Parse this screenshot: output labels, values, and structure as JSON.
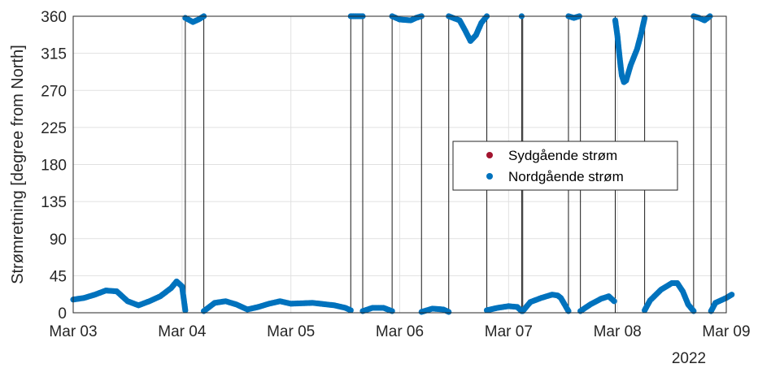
{
  "chart_data": {
    "type": "scatter",
    "title": "",
    "xlabel": "",
    "ylabel": "Strømretning [degree from North]",
    "x_ticks": [
      "Mar 03",
      "Mar 04",
      "Mar 05",
      "Mar 06",
      "Mar 07",
      "Mar 08",
      "Mar 09"
    ],
    "x_year_label": "2022",
    "x_range_days": [
      0,
      6
    ],
    "ylim": [
      0,
      360
    ],
    "y_ticks": [
      0,
      45,
      90,
      135,
      180,
      225,
      270,
      315,
      360
    ],
    "grid": true,
    "legend": {
      "placement": "center-right",
      "entries": [
        "Sydgående strøm",
        "Nordgående strøm"
      ]
    },
    "series": [
      {
        "name": "Sydgående strøm",
        "color": "#A2142F",
        "segments": []
      },
      {
        "name": "Nordgående strøm",
        "color": "#0072BD",
        "segments": [
          [
            [
              0.0,
              16
            ],
            [
              0.1,
              18
            ],
            [
              0.2,
              22
            ],
            [
              0.3,
              27
            ],
            [
              0.4,
              26
            ],
            [
              0.5,
              14
            ],
            [
              0.6,
              9
            ],
            [
              0.7,
              14
            ],
            [
              0.8,
              20
            ],
            [
              0.9,
              30
            ],
            [
              0.95,
              38
            ],
            [
              1.0,
              32
            ],
            [
              1.03,
              3
            ]
          ],
          [
            [
              1.03,
              358
            ],
            [
              1.1,
              353
            ],
            [
              1.15,
              356
            ],
            [
              1.2,
              360
            ]
          ],
          [
            [
              1.2,
              2
            ],
            [
              1.3,
              12
            ],
            [
              1.4,
              14
            ],
            [
              1.5,
              10
            ],
            [
              1.6,
              4
            ],
            [
              1.7,
              7
            ],
            [
              1.8,
              11
            ],
            [
              1.9,
              14
            ],
            [
              2.0,
              11
            ],
            [
              2.2,
              12
            ],
            [
              2.4,
              9
            ],
            [
              2.5,
              6
            ],
            [
              2.55,
              3
            ]
          ],
          [
            [
              2.55,
              360
            ],
            [
              2.6,
              360
            ],
            [
              2.66,
              360
            ]
          ],
          [
            [
              2.66,
              2
            ],
            [
              2.75,
              6
            ],
            [
              2.85,
              6
            ],
            [
              2.93,
              2
            ]
          ],
          [
            [
              2.93,
              360
            ],
            [
              3.0,
              356
            ],
            [
              3.1,
              355
            ],
            [
              3.15,
              358
            ],
            [
              3.2,
              360
            ]
          ],
          [
            [
              3.2,
              1
            ],
            [
              3.3,
              5
            ],
            [
              3.4,
              4
            ],
            [
              3.45,
              1
            ]
          ],
          [
            [
              3.45,
              360
            ],
            [
              3.55,
              355
            ],
            [
              3.6,
              343
            ],
            [
              3.65,
              330
            ],
            [
              3.7,
              337
            ],
            [
              3.75,
              352
            ],
            [
              3.8,
              360
            ]
          ],
          [
            [
              3.8,
              3
            ],
            [
              3.9,
              6
            ],
            [
              4.0,
              8
            ],
            [
              4.08,
              7
            ],
            [
              4.12,
              2
            ]
          ],
          [
            [
              4.12,
              360
            ]
          ],
          [
            [
              4.13,
              2
            ],
            [
              4.2,
              13
            ],
            [
              4.3,
              18
            ],
            [
              4.4,
              22
            ],
            [
              4.45,
              21
            ],
            [
              4.48,
              18
            ],
            [
              4.55,
              2
            ]
          ],
          [
            [
              4.55,
              360
            ],
            [
              4.6,
              358
            ],
            [
              4.65,
              360
            ]
          ],
          [
            [
              4.66,
              2
            ],
            [
              4.75,
              10
            ],
            [
              4.85,
              17
            ],
            [
              4.92,
              20
            ],
            [
              4.97,
              14
            ]
          ],
          [
            [
              4.98,
              355
            ],
            [
              5.0,
              336
            ],
            [
              5.02,
              310
            ],
            [
              5.04,
              288
            ],
            [
              5.06,
              280
            ],
            [
              5.08,
              282
            ],
            [
              5.12,
              300
            ],
            [
              5.18,
              320
            ],
            [
              5.22,
              340
            ],
            [
              5.25,
              358
            ]
          ],
          [
            [
              5.25,
              3
            ],
            [
              5.3,
              15
            ],
            [
              5.4,
              28
            ],
            [
              5.5,
              36
            ],
            [
              5.55,
              36
            ],
            [
              5.6,
              26
            ],
            [
              5.65,
              10
            ],
            [
              5.7,
              2
            ]
          ],
          [
            [
              5.7,
              360
            ],
            [
              5.75,
              358
            ],
            [
              5.8,
              355
            ],
            [
              5.85,
              360
            ]
          ],
          [
            [
              5.86,
              2
            ],
            [
              5.9,
              12
            ],
            [
              6.0,
              18
            ],
            [
              6.05,
              22
            ]
          ]
        ]
      }
    ],
    "connector_lines_at_days": [
      1.03,
      1.2,
      2.55,
      2.66,
      2.93,
      3.2,
      3.45,
      3.8,
      4.12,
      4.13,
      4.55,
      4.66,
      4.98,
      5.25,
      5.7,
      5.86
    ]
  }
}
